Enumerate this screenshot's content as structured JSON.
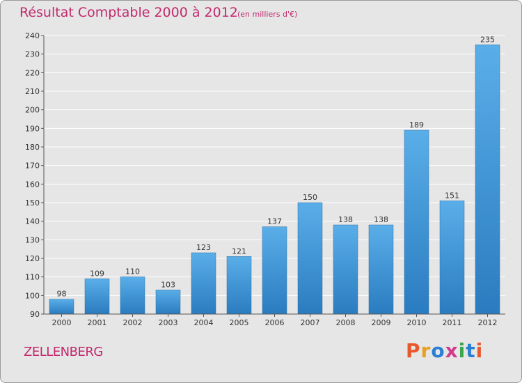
{
  "header": {
    "title": "Résultat Comptable 2000 à 2012",
    "subtitle": "(en milliers d'€)"
  },
  "footer": {
    "location": "ZELLENBERG",
    "logo_text": "Proxiti",
    "logo_colors": [
      "#e8582b",
      "#e8a020",
      "#2a7fd4",
      "#d23a8c",
      "#3aa64a",
      "#2a7fd4",
      "#e8582b"
    ]
  },
  "chart_data": {
    "type": "bar",
    "title": "Résultat Comptable 2000 à 2012",
    "subtitle": "(en milliers d'€)",
    "categories": [
      "2000",
      "2001",
      "2002",
      "2003",
      "2004",
      "2005",
      "2006",
      "2007",
      "2008",
      "2009",
      "2010",
      "2011",
      "2012"
    ],
    "values": [
      98,
      109,
      110,
      103,
      123,
      121,
      137,
      150,
      138,
      138,
      189,
      151,
      235
    ],
    "ylim": [
      90,
      240
    ],
    "yticks": [
      90,
      100,
      110,
      120,
      130,
      140,
      150,
      160,
      170,
      180,
      190,
      200,
      210,
      220,
      230,
      240
    ],
    "grid": true,
    "bar_color_top": "#5aaee8",
    "bar_color_bottom": "#2a7cc0",
    "xlabel": "",
    "ylabel": ""
  }
}
